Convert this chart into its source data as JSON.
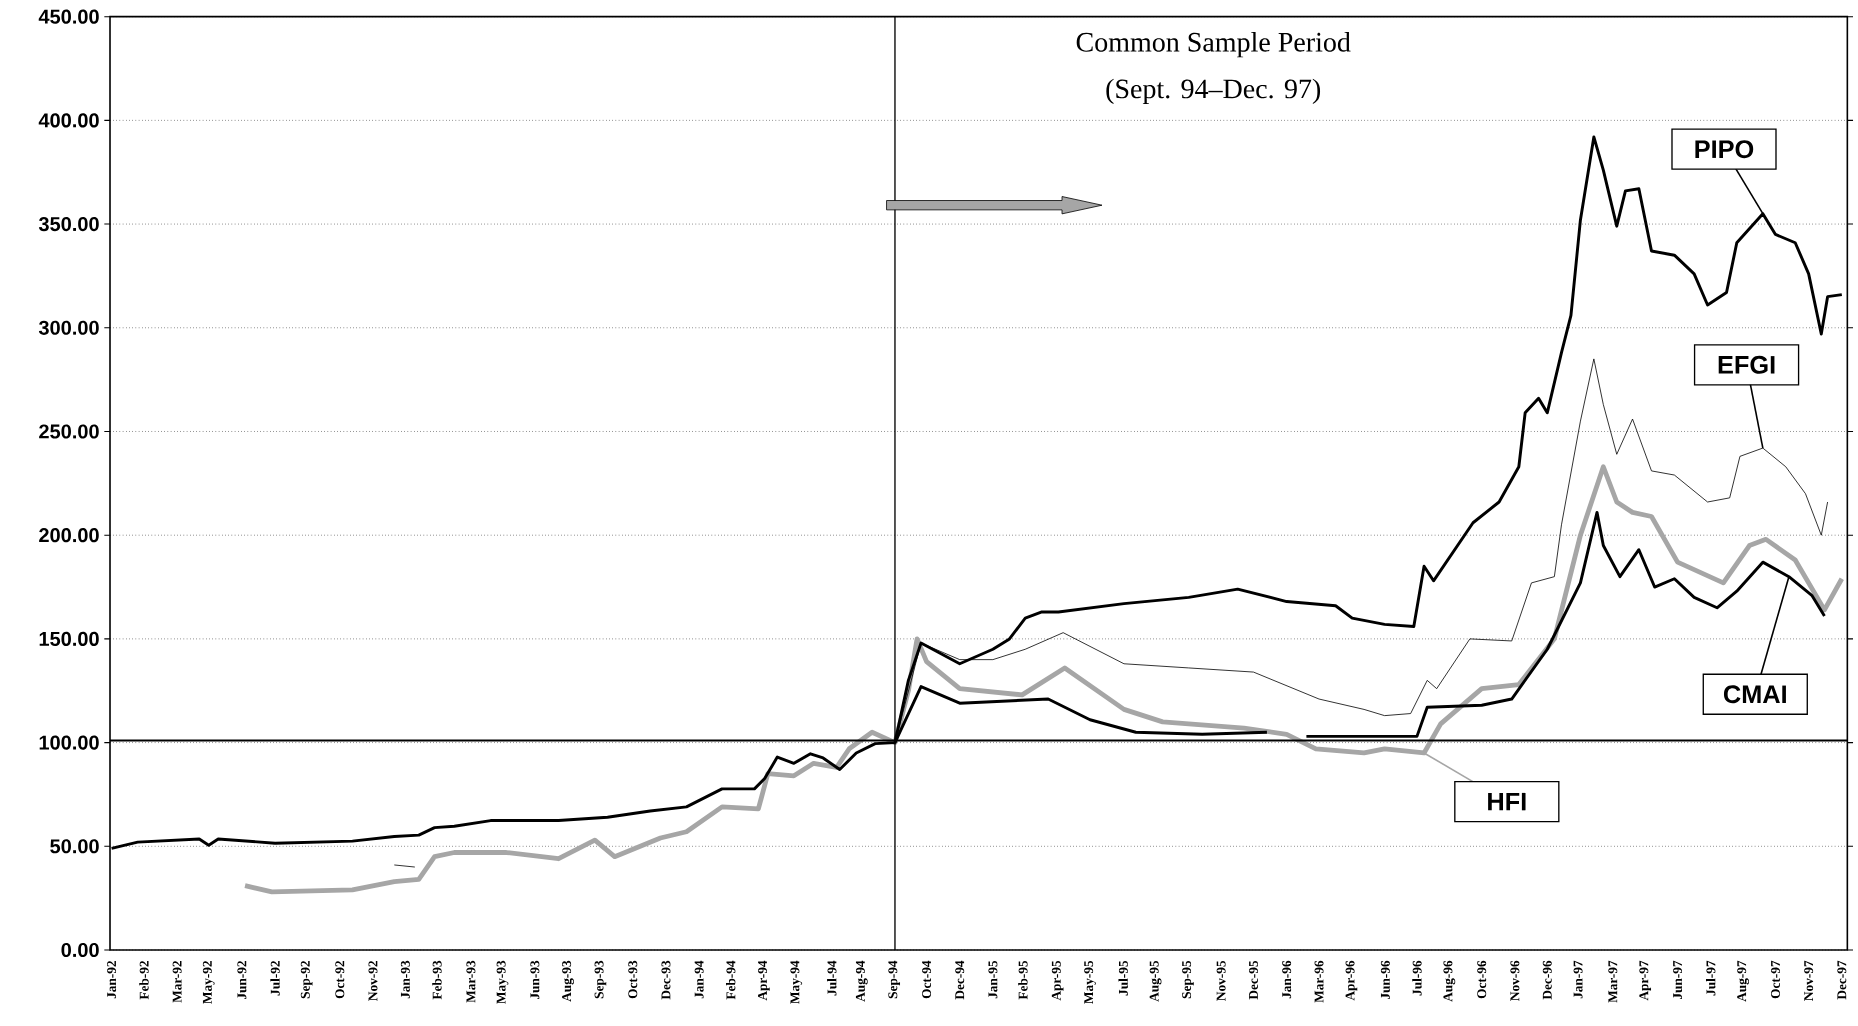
{
  "chart_data": {
    "type": "line",
    "annotations": [
      "Common Sample Period",
      "(Sept. 94–Dec. 97)"
    ],
    "xlim": [
      "1991-12-30",
      "1998-01-07"
    ],
    "ylim": [
      0,
      450
    ],
    "yticks": [
      {
        "value": 0,
        "label": "0.00"
      },
      {
        "value": 50,
        "label": "50.00"
      },
      {
        "value": 100,
        "label": "100.00"
      },
      {
        "value": 150,
        "label": "150.00"
      },
      {
        "value": 200,
        "label": "200.00"
      },
      {
        "value": 250,
        "label": "250.00"
      },
      {
        "value": 300,
        "label": "300.00"
      },
      {
        "value": 350,
        "label": "350.00"
      },
      {
        "value": 400,
        "label": "400.00"
      },
      {
        "value": 450,
        "label": "450.00"
      }
    ],
    "xticks": [
      {
        "value": "1992-01-01",
        "label": "Jan-92"
      },
      {
        "value": "1992-02-11",
        "label": "Feb-92"
      },
      {
        "value": "1992-03-24",
        "label": "Mar-92"
      },
      {
        "value": "1992-05-03",
        "label": "May-92"
      },
      {
        "value": "1992-06-14",
        "label": "Jun-92"
      },
      {
        "value": "1992-07-26",
        "label": "Jul-92"
      },
      {
        "value": "1992-09-04",
        "label": "Sep-92"
      },
      {
        "value": "1992-10-16",
        "label": "Oct-92"
      },
      {
        "value": "1992-11-27",
        "label": "Nov-92"
      },
      {
        "value": "1993-01-07",
        "label": "Jan-93"
      },
      {
        "value": "1993-02-16",
        "label": "Feb-93"
      },
      {
        "value": "1993-03-31",
        "label": "Mar-93"
      },
      {
        "value": "1993-05-10",
        "label": "May-93"
      },
      {
        "value": "1993-06-20",
        "label": "Jun-93"
      },
      {
        "value": "1993-08-01",
        "label": "Aug-93"
      },
      {
        "value": "1993-09-11",
        "label": "Sep-93"
      },
      {
        "value": "1993-10-22",
        "label": "Oct-93"
      },
      {
        "value": "1993-12-03",
        "label": "Dec-93"
      },
      {
        "value": "1994-01-14",
        "label": "Jan-94"
      },
      {
        "value": "1994-02-23",
        "label": "Feb-94"
      },
      {
        "value": "1994-04-06",
        "label": "Apr-94"
      },
      {
        "value": "1994-05-17",
        "label": "May-94"
      },
      {
        "value": "1994-07-01",
        "label": "Jul-94"
      },
      {
        "value": "1994-08-08",
        "label": "Aug-94"
      },
      {
        "value": "1994-09-18",
        "label": "Sep-94"
      },
      {
        "value": "1994-10-29",
        "label": "Oct-94"
      },
      {
        "value": "1994-12-10",
        "label": "Dec-94"
      },
      {
        "value": "1995-01-21",
        "label": "Jan-95"
      },
      {
        "value": "1995-02-28",
        "label": "Feb-95"
      },
      {
        "value": "1995-04-13",
        "label": "Apr-95"
      },
      {
        "value": "1995-05-24",
        "label": "May-95"
      },
      {
        "value": "1995-07-05",
        "label": "Jul-95"
      },
      {
        "value": "1995-08-15",
        "label": "Aug-95"
      },
      {
        "value": "1995-09-25",
        "label": "Sep-95"
      },
      {
        "value": "1995-11-06",
        "label": "Nov-95"
      },
      {
        "value": "1995-12-17",
        "label": "Dec-95"
      },
      {
        "value": "1996-01-28",
        "label": "Jan-96"
      },
      {
        "value": "1996-03-09",
        "label": "Mar-96"
      },
      {
        "value": "1996-04-19",
        "label": "Apr-96"
      },
      {
        "value": "1996-06-01",
        "label": "Jun-96"
      },
      {
        "value": "1996-07-11",
        "label": "Jul-96"
      },
      {
        "value": "1996-08-21",
        "label": "Aug-96"
      },
      {
        "value": "1996-10-01",
        "label": "Oct-96"
      },
      {
        "value": "1996-11-12",
        "label": "Nov-96"
      },
      {
        "value": "1996-12-23",
        "label": "Dec-96"
      },
      {
        "value": "1997-01-31",
        "label": "Jan-97"
      },
      {
        "value": "1997-03-16",
        "label": "Mar-97"
      },
      {
        "value": "1997-04-26",
        "label": "Apr-97"
      },
      {
        "value": "1997-06-06",
        "label": "Jun-97"
      },
      {
        "value": "1997-07-18",
        "label": "Jul-97"
      },
      {
        "value": "1997-08-28",
        "label": "Aug-97"
      },
      {
        "value": "1997-10-08",
        "label": "Oct-97"
      },
      {
        "value": "1997-11-19",
        "label": "Nov-97"
      },
      {
        "value": "1997-12-31",
        "label": "Dec-97"
      }
    ],
    "grid": "y",
    "marker": "none",
    "ref_lines": [
      {
        "axis": "x",
        "value": "1994-09-19",
        "color": "#000000"
      },
      {
        "axis": "y",
        "value": 101,
        "color": "#000000"
      }
    ],
    "series": [
      {
        "name": "HFI",
        "color": "#a6a6a6",
        "x": [
          "1992-06-18",
          "1992-07-22",
          "1992-11-01",
          "1992-12-24",
          "1993-01-24",
          "1993-02-13",
          "1993-03-10",
          "1993-05-15",
          "1993-07-20",
          "1993-09-04",
          "1993-09-29",
          "1993-11-26",
          "1993-12-29",
          "1994-02-12",
          "1994-03-30",
          "1994-04-11",
          "1994-05-14",
          "1994-06-08",
          "1994-07-07",
          "1994-07-23",
          "1994-08-21",
          "1994-09-19",
          "1994-10-06",
          "1994-10-17",
          "1994-10-29",
          "1994-12-10",
          "1995-02-27",
          "1995-04-22",
          "1995-07-06",
          "1995-08-24",
          "1995-12-05",
          "1996-01-28",
          "1996-03-05",
          "1996-05-05",
          "1996-05-31",
          "1996-07-20",
          "1996-08-10",
          "1996-10-01",
          "1996-11-17",
          "1997-01-01",
          "1997-02-03",
          "1997-03-04",
          "1997-03-21",
          "1997-04-10",
          "1997-05-04",
          "1997-06-06",
          "1997-08-03",
          "1997-09-05",
          "1997-09-26",
          "1997-11-02",
          "1997-12-09",
          "1997-12-31"
        ],
        "values": [
          31,
          28,
          29,
          33,
          34,
          45,
          47,
          47,
          44,
          53,
          45,
          54,
          57,
          69,
          68,
          85,
          84,
          90,
          88,
          97,
          105,
          100,
          125,
          150,
          139,
          126,
          123,
          136,
          116,
          110,
          107,
          104,
          97,
          95,
          97,
          95,
          109,
          126,
          128,
          150,
          200,
          233,
          216,
          211,
          209,
          187,
          177,
          195,
          198,
          188,
          164,
          179
        ]
      },
      {
        "name": "CMAI",
        "color": "#000000",
        "x": [
          "1994-09-19",
          "1994-10-22",
          "1994-12-10",
          "1995-04-01",
          "1995-05-24",
          "1995-07-21",
          "1995-10-13",
          "1996-01-03",
          "1996-01-20",
          "1996-02-22",
          "1996-07-11",
          "1996-07-24",
          "1996-10-01",
          "1996-11-08",
          "1996-12-23",
          "1997-02-03",
          "1997-02-24",
          "1997-03-04",
          "1997-03-25",
          "1997-04-18",
          "1997-05-08",
          "1997-06-02",
          "1997-06-27",
          "1997-07-26",
          "1997-08-20",
          "1997-09-22",
          "1997-10-25",
          "1997-11-23",
          "1997-12-09"
        ],
        "values": [
          100,
          127,
          119,
          121,
          111,
          105,
          104,
          105,
          null,
          103,
          103,
          117,
          118,
          121,
          145,
          177,
          211,
          195,
          180,
          193,
          175,
          179,
          170,
          165,
          173,
          187,
          180,
          171,
          161
        ]
      },
      {
        "name": "EFGI",
        "color": "#000000",
        "x": [
          "1992-12-24",
          "1993-01-19",
          "1993-06-01",
          "1994-09-19",
          "1994-10-22",
          "1994-12-10",
          "1995-01-21",
          "1995-03-03",
          "1995-04-20",
          "1995-07-06",
          "1995-09-26",
          "1995-12-17",
          "1996-03-09",
          "1996-05-05",
          "1996-05-31",
          "1996-07-03",
          "1996-07-24",
          "1996-08-05",
          "1996-09-16",
          "1996-11-08",
          "1996-12-03",
          "1997-01-01",
          "1997-01-10",
          "1997-02-03",
          "1997-02-20",
          "1997-03-04",
          "1997-03-21",
          "1997-04-10",
          "1997-05-04",
          "1997-06-02",
          "1997-07-14",
          "1997-08-11",
          "1997-08-24",
          "1997-09-22",
          "1997-10-21",
          "1997-11-15",
          "1997-12-05",
          "1997-12-13"
        ],
        "values": [
          41,
          40,
          null,
          100,
          148,
          140,
          140,
          145,
          153,
          138,
          136,
          134,
          121,
          116,
          113,
          114,
          130,
          126,
          150,
          149,
          177,
          180,
          205,
          255,
          285,
          263,
          239,
          256,
          231,
          229,
          216,
          218,
          238,
          242,
          233,
          220,
          200,
          216
        ]
      },
      {
        "name": "PIPO",
        "color": "#000000",
        "x": [
          "1992-01-01",
          "1992-02-03",
          "1992-04-21",
          "1992-05-03",
          "1992-05-15",
          "1992-07-26",
          "1992-11-01",
          "1992-12-24",
          "1993-01-24",
          "1993-02-13",
          "1993-03-10",
          "1993-04-25",
          "1993-07-20",
          "1993-09-20",
          "1993-11-13",
          "1993-12-29",
          "1994-02-12",
          "1994-03-25",
          "1994-04-07",
          "1994-04-23",
          "1994-05-14",
          "1994-06-04",
          "1994-06-20",
          "1994-07-11",
          "1994-08-01",
          "1994-08-25",
          "1994-09-19",
          "1994-10-06",
          "1994-10-22",
          "1994-12-10",
          "1995-01-21",
          "1995-02-11",
          "1995-03-03",
          "1995-03-24",
          "1995-04-14",
          "1995-07-06",
          "1995-09-26",
          "1995-11-27",
          "1996-01-28",
          "1996-03-30",
          "1996-04-20",
          "1996-05-31",
          "1996-07-07",
          "1996-07-20",
          "1996-08-01",
          "1996-09-20",
          "1996-10-23",
          "1996-11-17",
          "1996-11-25",
          "1996-12-12",
          "1996-12-23",
          "1997-01-10",
          "1997-01-22",
          "1997-02-03",
          "1997-02-20",
          "1997-03-04",
          "1997-03-21",
          "1997-04-01",
          "1997-04-18",
          "1997-05-04",
          "1997-06-02",
          "1997-06-27",
          "1997-07-14",
          "1997-08-07",
          "1997-08-20",
          "1997-09-22",
          "1997-10-08",
          "1997-11-02",
          "1997-11-19",
          "1997-12-05",
          "1997-12-13",
          "1997-12-31"
        ],
        "values": [
          49,
          52,
          53.5,
          50.5,
          53.5,
          51.5,
          52.5,
          54.7,
          55.4,
          59,
          59.7,
          62.4,
          62.4,
          64,
          67,
          69,
          77.7,
          77.7,
          82.7,
          93,
          90,
          94.6,
          92.6,
          87,
          95,
          99.5,
          100,
          130,
          148,
          138,
          145,
          150,
          160,
          163,
          163,
          167,
          170,
          174,
          168,
          166,
          160,
          157,
          156,
          185,
          178,
          206,
          216,
          233,
          259,
          266,
          259,
          288,
          306,
          352,
          392,
          376,
          349,
          366,
          367,
          337,
          335,
          326,
          311,
          317,
          341,
          355,
          345,
          341,
          326,
          297,
          315,
          316
        ]
      }
    ]
  }
}
